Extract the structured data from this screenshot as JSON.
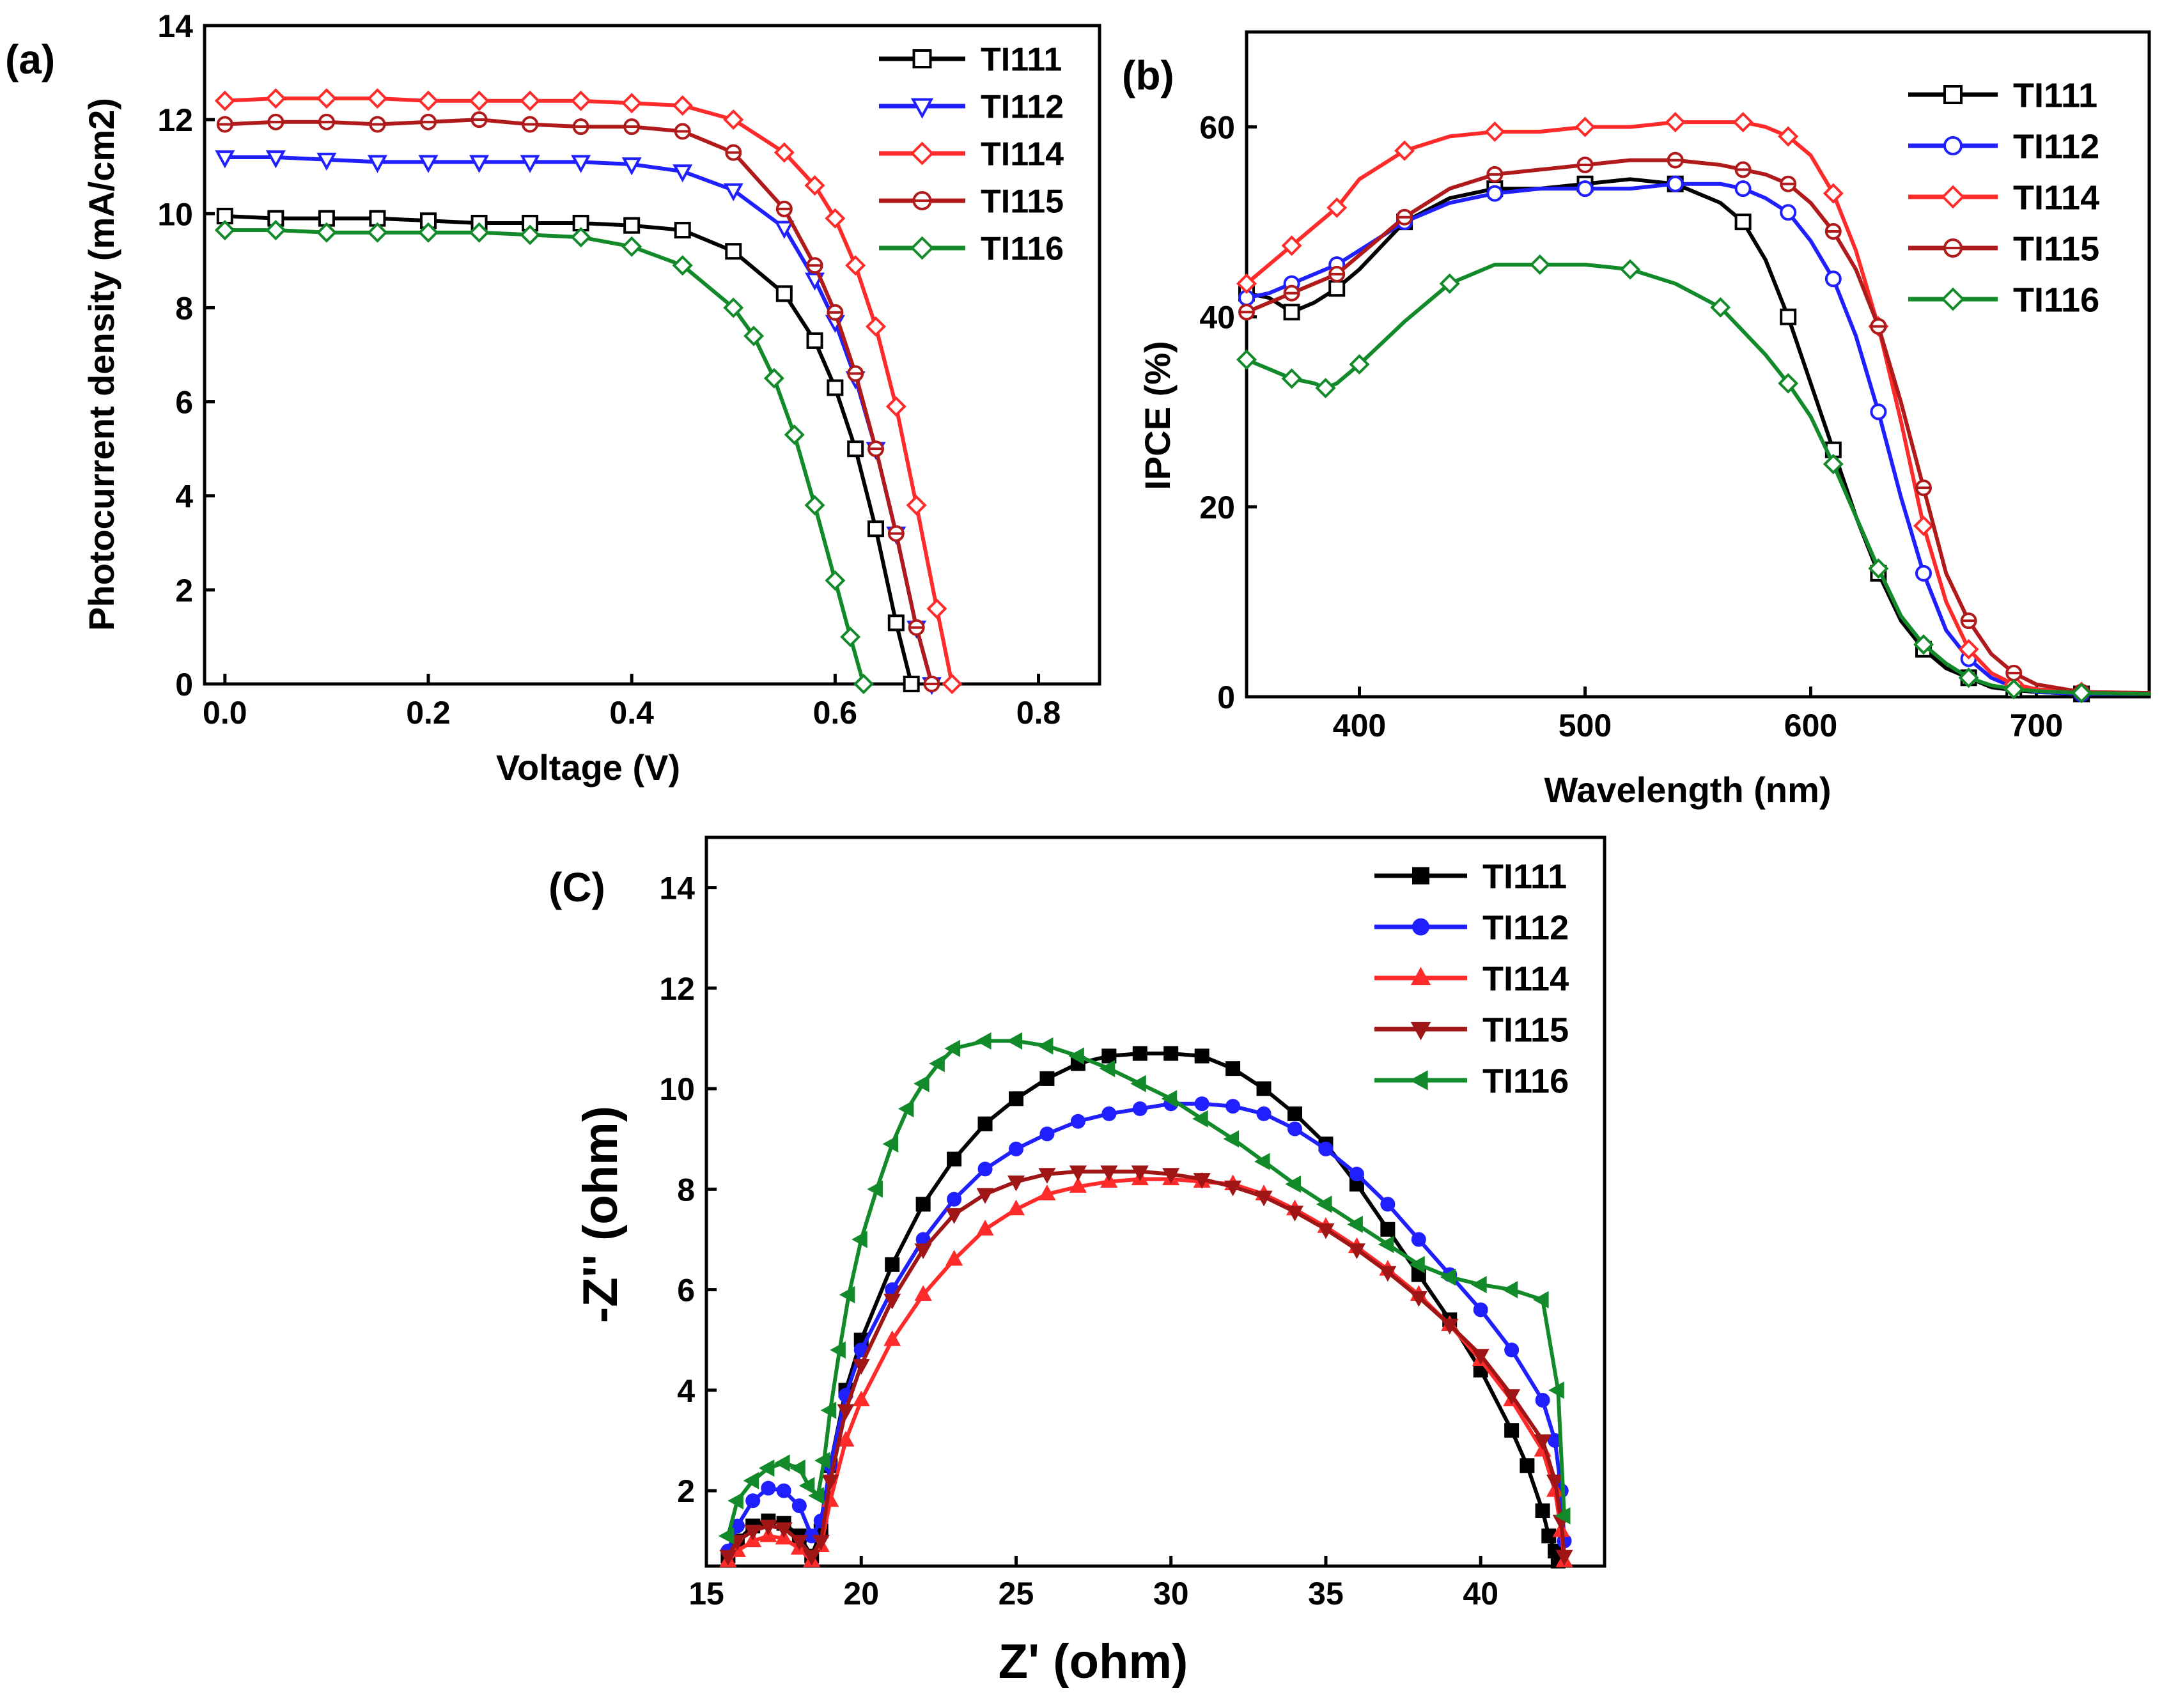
{
  "chart_data": [
    {
      "panel_label": "(a)",
      "type": "line",
      "xlabel": "Voltage (V)",
      "ylabel": "Photocurrent density (mA/cm2)",
      "xlim": [
        -0.02,
        0.86
      ],
      "ylim": [
        0,
        14
      ],
      "xticks": [
        "0.0",
        "0.2",
        "0.4",
        "0.6",
        "0.8"
      ],
      "yticks": [
        "0",
        "2",
        "4",
        "6",
        "8",
        "10",
        "12",
        "14"
      ],
      "legend_position": "top-right",
      "marker_style": "open",
      "series": [
        {
          "name": "TI111",
          "color": "#000000",
          "marker": "square",
          "x": [
            0,
            0.05,
            0.1,
            0.15,
            0.2,
            0.25,
            0.3,
            0.35,
            0.4,
            0.45,
            0.5,
            0.55,
            0.58,
            0.6,
            0.62,
            0.64,
            0.66,
            0.675
          ],
          "y": [
            9.95,
            9.9,
            9.9,
            9.9,
            9.85,
            9.8,
            9.8,
            9.8,
            9.75,
            9.65,
            9.2,
            8.3,
            7.3,
            6.3,
            5.0,
            3.3,
            1.3,
            0
          ]
        },
        {
          "name": "TI112",
          "color": "#1f1fff",
          "marker": "triangle-down",
          "x": [
            0,
            0.05,
            0.1,
            0.15,
            0.2,
            0.25,
            0.3,
            0.35,
            0.4,
            0.45,
            0.5,
            0.55,
            0.58,
            0.6,
            0.62,
            0.64,
            0.66,
            0.68,
            0.695
          ],
          "y": [
            11.2,
            11.2,
            11.15,
            11.1,
            11.1,
            11.1,
            11.1,
            11.1,
            11.05,
            10.9,
            10.5,
            9.7,
            8.6,
            7.7,
            6.5,
            5.0,
            3.2,
            1.2,
            0
          ]
        },
        {
          "name": "TI114",
          "color": "#ff2b2b",
          "marker": "diamond",
          "x": [
            0,
            0.05,
            0.1,
            0.15,
            0.2,
            0.25,
            0.3,
            0.35,
            0.4,
            0.45,
            0.5,
            0.55,
            0.58,
            0.6,
            0.62,
            0.64,
            0.66,
            0.68,
            0.7,
            0.715
          ],
          "y": [
            12.4,
            12.45,
            12.45,
            12.45,
            12.4,
            12.4,
            12.4,
            12.4,
            12.35,
            12.3,
            12.0,
            11.3,
            10.6,
            9.9,
            8.9,
            7.6,
            5.9,
            3.8,
            1.6,
            0
          ]
        },
        {
          "name": "TI115",
          "color": "#b01a1a",
          "marker": "circle-bar",
          "x": [
            0,
            0.05,
            0.1,
            0.15,
            0.2,
            0.25,
            0.3,
            0.35,
            0.4,
            0.45,
            0.5,
            0.55,
            0.58,
            0.6,
            0.62,
            0.64,
            0.66,
            0.68,
            0.695
          ],
          "y": [
            11.9,
            11.95,
            11.95,
            11.9,
            11.95,
            12.0,
            11.9,
            11.85,
            11.85,
            11.75,
            11.3,
            10.1,
            8.9,
            7.9,
            6.6,
            5.0,
            3.2,
            1.2,
            0
          ]
        },
        {
          "name": "TI116",
          "color": "#138a2a",
          "marker": "diamond",
          "x": [
            0,
            0.05,
            0.1,
            0.15,
            0.2,
            0.25,
            0.3,
            0.35,
            0.4,
            0.45,
            0.5,
            0.52,
            0.54,
            0.56,
            0.58,
            0.6,
            0.615,
            0.628
          ],
          "y": [
            9.65,
            9.65,
            9.6,
            9.6,
            9.6,
            9.6,
            9.55,
            9.5,
            9.3,
            8.9,
            8.0,
            7.4,
            6.5,
            5.3,
            3.8,
            2.2,
            1.0,
            0
          ]
        }
      ]
    },
    {
      "panel_label": "(b)",
      "type": "line",
      "xlabel": "Wavelength (nm)",
      "ylabel": "IPCE (%)",
      "xlim": [
        350,
        750
      ],
      "ylim": [
        0,
        70
      ],
      "xticks": [
        "400",
        "500",
        "600",
        "700"
      ],
      "yticks": [
        "0",
        "20",
        "40",
        "60"
      ],
      "legend_position": "top-right",
      "marker_style": "open",
      "series": [
        {
          "name": "TI111",
          "color": "#000000",
          "marker": "square",
          "x": [
            350,
            360,
            370,
            380,
            390,
            400,
            420,
            440,
            460,
            480,
            500,
            520,
            540,
            560,
            570,
            580,
            590,
            600,
            610,
            620,
            630,
            640,
            650,
            660,
            670,
            680,
            690,
            700,
            720,
            750
          ],
          "y": [
            42.5,
            42,
            40.5,
            41.5,
            43,
            45,
            50,
            52.5,
            53.5,
            53.5,
            54,
            54.5,
            54,
            52,
            50,
            46,
            40,
            33,
            26,
            19,
            13,
            8,
            5,
            3,
            2,
            1,
            0.7,
            0.5,
            0.3,
            0.3
          ]
        },
        {
          "name": "TI112",
          "color": "#1f1fff",
          "marker": "circle",
          "x": [
            350,
            360,
            370,
            380,
            390,
            400,
            420,
            440,
            460,
            480,
            500,
            520,
            540,
            560,
            570,
            580,
            590,
            600,
            610,
            620,
            630,
            640,
            650,
            660,
            670,
            680,
            690,
            700,
            720,
            750
          ],
          "y": [
            42,
            42.5,
            43.5,
            44.5,
            45.5,
            47,
            50,
            52,
            53,
            53.5,
            53.5,
            53.5,
            54,
            54,
            53.5,
            52.5,
            51,
            48,
            44,
            38,
            30,
            21,
            13,
            7,
            4,
            2,
            1,
            0.5,
            0.3,
            0.3
          ]
        },
        {
          "name": "TI114",
          "color": "#ff2b2b",
          "marker": "diamond",
          "x": [
            350,
            360,
            370,
            380,
            390,
            400,
            420,
            440,
            460,
            480,
            500,
            520,
            540,
            560,
            570,
            580,
            590,
            600,
            610,
            620,
            630,
            640,
            650,
            660,
            670,
            680,
            690,
            700,
            720,
            750
          ],
          "y": [
            43.5,
            45.5,
            47.5,
            49.5,
            51.5,
            54.5,
            57.5,
            59,
            59.5,
            59.5,
            60,
            60,
            60.5,
            60.5,
            60.5,
            60,
            59,
            57,
            53,
            47,
            39,
            29,
            18,
            10,
            5,
            2.5,
            1.3,
            0.8,
            0.5,
            0.4
          ]
        },
        {
          "name": "TI115",
          "color": "#b01a1a",
          "marker": "circle-bar",
          "x": [
            350,
            360,
            370,
            380,
            390,
            400,
            420,
            440,
            460,
            480,
            500,
            520,
            540,
            560,
            570,
            580,
            590,
            600,
            610,
            620,
            630,
            640,
            650,
            660,
            670,
            680,
            690,
            700,
            720,
            750
          ],
          "y": [
            40.5,
            41.5,
            42.5,
            43.5,
            44.5,
            46.5,
            50.5,
            53.5,
            55,
            55.5,
            56,
            56.5,
            56.5,
            56,
            55.5,
            55,
            54,
            52,
            49,
            45,
            39,
            31,
            22,
            13,
            8,
            4.5,
            2.5,
            1.3,
            0.5,
            0.4
          ]
        },
        {
          "name": "TI116",
          "color": "#138a2a",
          "marker": "diamond",
          "x": [
            350,
            360,
            370,
            380,
            385,
            390,
            400,
            420,
            440,
            460,
            480,
            500,
            520,
            540,
            560,
            580,
            590,
            600,
            610,
            620,
            630,
            640,
            650,
            660,
            670,
            680,
            690,
            700,
            720,
            750
          ],
          "y": [
            35.5,
            34.5,
            33.5,
            33,
            32.5,
            33,
            35,
            39.5,
            43.5,
            45.5,
            45.5,
            45.5,
            45,
            43.5,
            41,
            36,
            33,
            29.5,
            24.5,
            19,
            13.5,
            8.5,
            5.5,
            3.5,
            2,
            1.2,
            0.8,
            0.6,
            0.4,
            0.3
          ]
        }
      ]
    },
    {
      "panel_label": "(C)",
      "type": "scatter",
      "xlabel": "Z' (ohm)",
      "ylabel": "-Z'' (ohm)",
      "xlim": [
        15,
        44
      ],
      "ylim": [
        0.5,
        15
      ],
      "xticks": [
        "15",
        "20",
        "25",
        "30",
        "35",
        "40"
      ],
      "yticks": [
        "2",
        "4",
        "6",
        "8",
        "10",
        "12",
        "14"
      ],
      "legend_position": "top-right",
      "marker_style": "filled",
      "series": [
        {
          "name": "TI111",
          "color": "#000000",
          "marker": "square",
          "x": [
            15.7,
            16.0,
            16.5,
            17.0,
            17.5,
            18.0,
            18.4,
            18.7,
            19.0,
            19.5,
            20,
            21,
            22,
            23,
            24,
            25,
            26,
            27,
            28,
            29,
            30,
            31,
            32,
            33,
            34,
            35,
            36,
            37,
            38,
            39,
            40,
            41,
            41.5,
            42,
            42.2,
            42.4,
            42.5
          ],
          "y": [
            0.7,
            1.0,
            1.3,
            1.4,
            1.35,
            1.1,
            0.7,
            1.2,
            2.5,
            4.0,
            5.0,
            6.5,
            7.7,
            8.6,
            9.3,
            9.8,
            10.2,
            10.5,
            10.65,
            10.7,
            10.7,
            10.65,
            10.4,
            10.0,
            9.5,
            8.9,
            8.1,
            7.2,
            6.3,
            5.4,
            4.4,
            3.2,
            2.5,
            1.6,
            1.1,
            0.8,
            0.6
          ]
        },
        {
          "name": "TI112",
          "color": "#1f1fff",
          "marker": "circle",
          "x": [
            15.7,
            16.0,
            16.5,
            17.0,
            17.5,
            18.0,
            18.4,
            18.7,
            19.0,
            19.5,
            20,
            21,
            22,
            23,
            24,
            25,
            26,
            27,
            28,
            29,
            30,
            31,
            32,
            33,
            34,
            35,
            36,
            37,
            38,
            39,
            40,
            41,
            42,
            42.4,
            42.6,
            42.7
          ],
          "y": [
            0.8,
            1.3,
            1.8,
            2.05,
            2.0,
            1.7,
            1.1,
            1.4,
            2.5,
            3.9,
            4.8,
            6.0,
            7.0,
            7.8,
            8.4,
            8.8,
            9.1,
            9.35,
            9.5,
            9.6,
            9.7,
            9.7,
            9.65,
            9.5,
            9.2,
            8.8,
            8.3,
            7.7,
            7.0,
            6.3,
            5.6,
            4.8,
            3.8,
            3.0,
            2.0,
            1.0
          ]
        },
        {
          "name": "TI114",
          "color": "#ff2b2b",
          "marker": "triangle-up",
          "x": [
            15.7,
            16.0,
            16.5,
            17.0,
            17.5,
            18.0,
            18.4,
            18.7,
            19.0,
            19.5,
            20,
            21,
            22,
            23,
            24,
            25,
            26,
            27,
            28,
            29,
            30,
            31,
            32,
            33,
            34,
            35,
            36,
            37,
            38,
            39,
            40,
            41,
            42,
            42.4,
            42.6,
            42.7
          ],
          "y": [
            0.6,
            0.8,
            1.0,
            1.1,
            1.05,
            0.85,
            0.6,
            0.9,
            1.8,
            3.0,
            3.8,
            5.0,
            5.9,
            6.6,
            7.2,
            7.6,
            7.9,
            8.05,
            8.15,
            8.2,
            8.2,
            8.15,
            8.1,
            7.9,
            7.6,
            7.25,
            6.85,
            6.4,
            5.9,
            5.3,
            4.6,
            3.8,
            2.8,
            2.0,
            1.2,
            0.6
          ]
        },
        {
          "name": "TI115",
          "color": "#a01515",
          "marker": "triangle-down",
          "x": [
            15.7,
            16.0,
            16.5,
            17.0,
            17.5,
            18.0,
            18.4,
            18.7,
            19.0,
            19.5,
            20,
            21,
            22,
            23,
            24,
            25,
            26,
            27,
            28,
            29,
            30,
            31,
            32,
            33,
            34,
            35,
            36,
            37,
            38,
            39,
            40,
            41,
            42,
            42.4,
            42.6,
            42.7
          ],
          "y": [
            0.7,
            1.0,
            1.2,
            1.3,
            1.25,
            1.0,
            0.7,
            1.0,
            2.2,
            3.6,
            4.5,
            5.8,
            6.8,
            7.5,
            7.9,
            8.15,
            8.3,
            8.35,
            8.35,
            8.35,
            8.3,
            8.2,
            8.05,
            7.85,
            7.55,
            7.2,
            6.8,
            6.35,
            5.85,
            5.3,
            4.7,
            3.9,
            3.0,
            2.2,
            1.4,
            0.7
          ]
        },
        {
          "name": "TI116",
          "color": "#138a2a",
          "marker": "triangle-left",
          "x": [
            15.7,
            16.0,
            16.5,
            17.0,
            17.5,
            18.0,
            18.3,
            18.6,
            18.8,
            19.0,
            19.3,
            19.6,
            20,
            20.5,
            21,
            21.5,
            22,
            22.5,
            23,
            24,
            25,
            26,
            27,
            28,
            29,
            30,
            31,
            32,
            33,
            34,
            35,
            36,
            37,
            38,
            39,
            40,
            41,
            42,
            42.5,
            42.7
          ],
          "y": [
            1.1,
            1.8,
            2.2,
            2.45,
            2.55,
            2.45,
            2.1,
            1.9,
            2.6,
            3.6,
            4.8,
            5.9,
            7.0,
            8.0,
            8.9,
            9.6,
            10.1,
            10.5,
            10.8,
            10.95,
            10.95,
            10.85,
            10.65,
            10.4,
            10.1,
            9.8,
            9.4,
            9.0,
            8.55,
            8.1,
            7.7,
            7.3,
            6.9,
            6.5,
            6.25,
            6.1,
            6.0,
            5.8,
            4.0,
            1.5
          ]
        }
      ]
    }
  ]
}
